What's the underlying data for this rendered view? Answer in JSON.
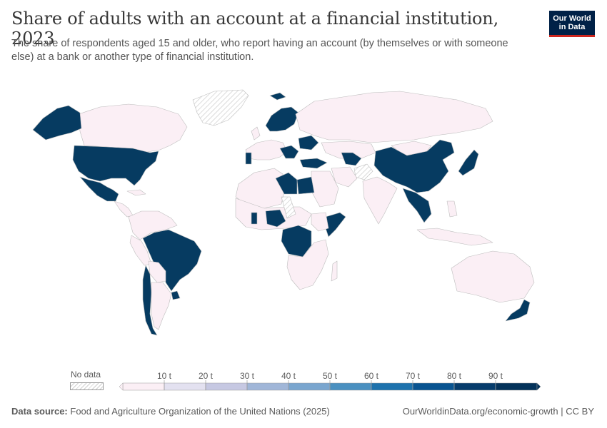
{
  "header": {
    "title": "Share of adults with an account at a financial institution, 2023",
    "subtitle": "The share of respondents aged 15 and older, who report having an account (by themselves or with someone else) at a bank or another type of financial institution."
  },
  "logo": {
    "line1": "Our World",
    "line2": "in Data"
  },
  "legend": {
    "no_data_label": "No data",
    "ticks": [
      "10 t",
      "20 t",
      "30 t",
      "40 t",
      "50 t",
      "60 t",
      "70 t",
      "80 t",
      "90 t"
    ],
    "colors": [
      "#fbeff5",
      "#e3e1f0",
      "#c6c8e2",
      "#a0b6d8",
      "#7aa6cf",
      "#4a90c0",
      "#1d72ad",
      "#095491",
      "#063c6c",
      "#04325a"
    ]
  },
  "map_colors": {
    "land_low": "#fbeff5",
    "land_high": "#063b61",
    "border": "#b9b9b9",
    "no_data_hatch": "#d0d0d0"
  },
  "footer": {
    "source_label": "Data source:",
    "source_text": "Food and Agriculture Organization of the United Nations (2025)",
    "url": "OurWorldinData.org/economic-growth | CC BY"
  }
}
